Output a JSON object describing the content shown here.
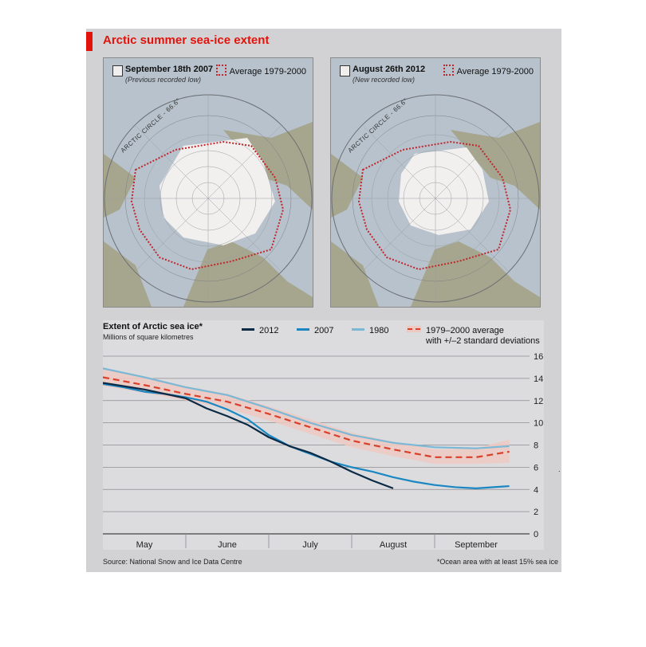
{
  "title": "Arctic summer sea-ice extent",
  "maps": [
    {
      "main": "September 18th 2007",
      "sub": "(Previous recorded low)",
      "average_label": "Average 1979-2000",
      "circle_label": "ARCTIC CIRCLE - 66.6°"
    },
    {
      "main": "August 26th 2012",
      "sub": "(New recorded low)",
      "average_label": "Average 1979-2000",
      "circle_label": "ARCTIC CIRCLE - 66.6°"
    }
  ],
  "colors": {
    "accent": "#e3120b",
    "series_2012": "#0b2a45",
    "series_2007": "#1a87c2",
    "series_1980": "#7ab8d6",
    "average": "#d8402a",
    "band": "#eec9c2",
    "ice": "#f2efef",
    "sea": "#b7c2cc",
    "land": "#a6a58d"
  },
  "chart_data": {
    "type": "line",
    "title": "Extent of Arctic sea ice*",
    "ylabel": "Millions of square kilometres",
    "xlabel": "",
    "ylim": [
      0,
      16
    ],
    "yticks": [
      "0",
      "2",
      "4",
      "6",
      "8",
      "10",
      "12",
      "14",
      "16"
    ],
    "x_categories": [
      "May",
      "June",
      "July",
      "August",
      "September"
    ],
    "xlim": [
      0,
      5
    ],
    "grid": true,
    "legend_position": "top",
    "series": [
      {
        "name": "2012",
        "color": "#0b2a45",
        "x": [
          0.0,
          0.25,
          0.5,
          0.75,
          1.0,
          1.25,
          1.5,
          1.75,
          2.0,
          2.25,
          2.5,
          2.75,
          3.0,
          3.25,
          3.5
        ],
        "y": [
          13.6,
          13.3,
          13.0,
          12.6,
          12.2,
          11.3,
          10.6,
          9.8,
          8.7,
          7.9,
          7.3,
          6.5,
          5.6,
          4.8,
          4.1
        ]
      },
      {
        "name": "2007",
        "color": "#1a87c2",
        "x": [
          0.0,
          0.25,
          0.5,
          0.75,
          1.0,
          1.25,
          1.5,
          1.75,
          2.0,
          2.25,
          2.5,
          2.75,
          3.0,
          3.25,
          3.5,
          3.75,
          4.0,
          4.25,
          4.5,
          4.9
        ],
        "y": [
          13.5,
          13.2,
          12.8,
          12.6,
          12.3,
          11.9,
          11.2,
          10.3,
          8.9,
          7.9,
          7.2,
          6.5,
          6.0,
          5.6,
          5.1,
          4.7,
          4.4,
          4.2,
          4.1,
          4.3
        ]
      },
      {
        "name": "1980",
        "color": "#7ab8d6",
        "x": [
          0.0,
          0.5,
          1.0,
          1.5,
          2.0,
          2.5,
          3.0,
          3.5,
          4.0,
          4.5,
          4.9
        ],
        "y": [
          14.9,
          14.1,
          13.2,
          12.5,
          11.3,
          10.0,
          8.9,
          8.2,
          7.8,
          7.7,
          7.9
        ]
      },
      {
        "name": "1979-2000 average with +/-2 standard deviations",
        "color": "#d8402a",
        "x": [
          0.0,
          0.5,
          1.0,
          1.5,
          2.0,
          2.5,
          3.0,
          3.5,
          4.0,
          4.5,
          4.9
        ],
        "y": [
          14.1,
          13.4,
          12.6,
          11.9,
          10.8,
          9.6,
          8.4,
          7.6,
          6.9,
          6.9,
          7.4
        ],
        "band_low": [
          13.3,
          12.7,
          12.0,
          11.3,
          10.2,
          9.0,
          7.8,
          7.0,
          6.3,
          6.3,
          6.4
        ],
        "band_high": [
          14.9,
          14.2,
          13.3,
          12.6,
          11.5,
          10.3,
          9.1,
          8.3,
          7.6,
          7.7,
          8.5
        ]
      }
    ]
  },
  "legend": {
    "item_2012": "2012",
    "item_2007": "2007",
    "item_1980": "1980",
    "avg_line1": "1979–2000 average",
    "avg_line2": "with +/–2 standard deviations"
  },
  "source": "Source: National Snow and Ice Data Centre",
  "footnote": "*Ocean area with at least 15% sea ice",
  "stray_mark": "."
}
